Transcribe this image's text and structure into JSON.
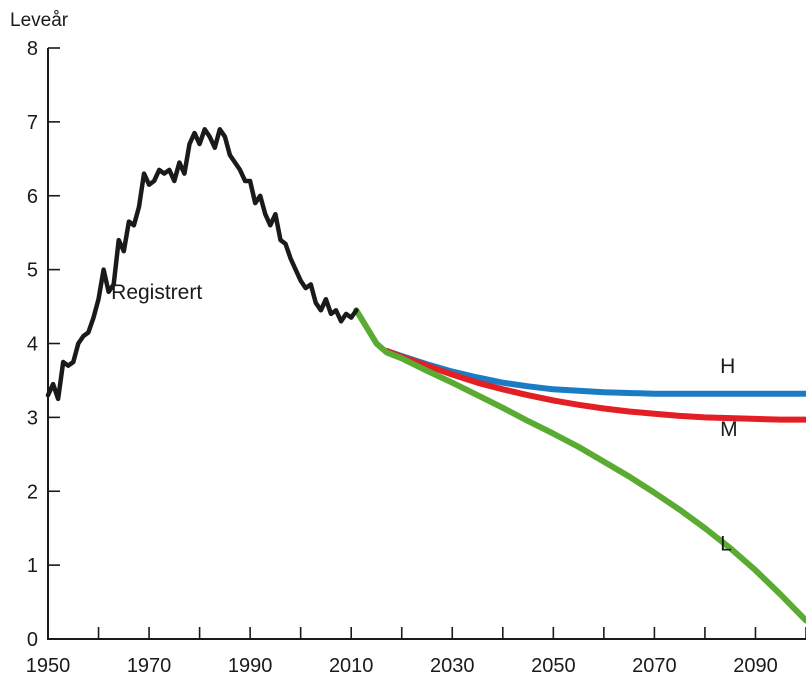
{
  "chart_data": {
    "type": "line",
    "title": "",
    "ylabel": "Leveår",
    "xlabel": "",
    "xlim": [
      1950,
      2100
    ],
    "ylim": [
      0,
      8
    ],
    "x_ticks": [
      1950,
      1970,
      1990,
      2010,
      2030,
      2050,
      2070,
      2090
    ],
    "y_ticks": [
      0,
      1,
      2,
      3,
      4,
      5,
      6,
      7,
      8
    ],
    "grid": false,
    "legend": "none",
    "annotations": [
      {
        "text": "Registrert",
        "x": 1962.5,
        "y": 4.6
      },
      {
        "text": "H",
        "x": 2083,
        "y": 3.6
      },
      {
        "text": "M",
        "x": 2083,
        "y": 2.75
      },
      {
        "text": "L",
        "x": 2083,
        "y": 1.2
      }
    ],
    "series": [
      {
        "key": "registrert",
        "color": "#1a1a1a",
        "x": [
          1950,
          1951,
          1952,
          1953,
          1954,
          1955,
          1956,
          1957,
          1958,
          1959,
          1960,
          1961,
          1962,
          1963,
          1964,
          1965,
          1966,
          1967,
          1968,
          1969,
          1970,
          1971,
          1972,
          1973,
          1974,
          1975,
          1976,
          1977,
          1978,
          1979,
          1980,
          1981,
          1982,
          1983,
          1984,
          1985,
          1986,
          1987,
          1988,
          1989,
          1990,
          1991,
          1992,
          1993,
          1994,
          1995,
          1996,
          1997,
          1998,
          1999,
          2000,
          2001,
          2002,
          2003,
          2004,
          2005,
          2006,
          2007,
          2008,
          2009,
          2010,
          2011
        ],
        "y": [
          3.3,
          3.45,
          3.25,
          3.75,
          3.7,
          3.75,
          4.0,
          4.1,
          4.15,
          4.35,
          4.6,
          5.0,
          4.7,
          4.8,
          5.4,
          5.25,
          5.65,
          5.6,
          5.85,
          6.3,
          6.15,
          6.2,
          6.35,
          6.3,
          6.35,
          6.2,
          6.45,
          6.3,
          6.7,
          6.85,
          6.7,
          6.9,
          6.8,
          6.65,
          6.9,
          6.8,
          6.55,
          6.45,
          6.35,
          6.2,
          6.2,
          5.9,
          6.0,
          5.75,
          5.6,
          5.75,
          5.4,
          5.35,
          5.15,
          5.0,
          4.85,
          4.75,
          4.8,
          4.55,
          4.45,
          4.6,
          4.4,
          4.45,
          4.3,
          4.4,
          4.35,
          4.45
        ]
      },
      {
        "key": "H",
        "color": "#1b7bc4",
        "x": [
          2017,
          2020,
          2025,
          2030,
          2035,
          2040,
          2045,
          2050,
          2055,
          2060,
          2065,
          2070,
          2075,
          2080,
          2085,
          2090,
          2095,
          2100
        ],
        "y": [
          3.9,
          3.83,
          3.72,
          3.62,
          3.54,
          3.47,
          3.42,
          3.38,
          3.36,
          3.34,
          3.33,
          3.32,
          3.32,
          3.32,
          3.32,
          3.32,
          3.32,
          3.32
        ]
      },
      {
        "key": "M",
        "color": "#e31e24",
        "x": [
          2017,
          2020,
          2025,
          2030,
          2035,
          2040,
          2045,
          2050,
          2055,
          2060,
          2065,
          2070,
          2075,
          2080,
          2085,
          2090,
          2095,
          2100
        ],
        "y": [
          3.9,
          3.82,
          3.7,
          3.58,
          3.47,
          3.38,
          3.3,
          3.23,
          3.17,
          3.12,
          3.08,
          3.05,
          3.02,
          3.0,
          2.99,
          2.98,
          2.97,
          2.97
        ]
      },
      {
        "key": "L",
        "color": "#5aab32",
        "x": [
          2011,
          2015,
          2017,
          2020,
          2025,
          2030,
          2035,
          2040,
          2045,
          2050,
          2055,
          2060,
          2065,
          2070,
          2075,
          2080,
          2085,
          2090,
          2095,
          2100
        ],
        "y": [
          4.45,
          4.0,
          3.88,
          3.8,
          3.63,
          3.47,
          3.3,
          3.13,
          2.95,
          2.78,
          2.6,
          2.4,
          2.2,
          1.98,
          1.75,
          1.5,
          1.23,
          0.93,
          0.6,
          0.25
        ]
      }
    ]
  }
}
